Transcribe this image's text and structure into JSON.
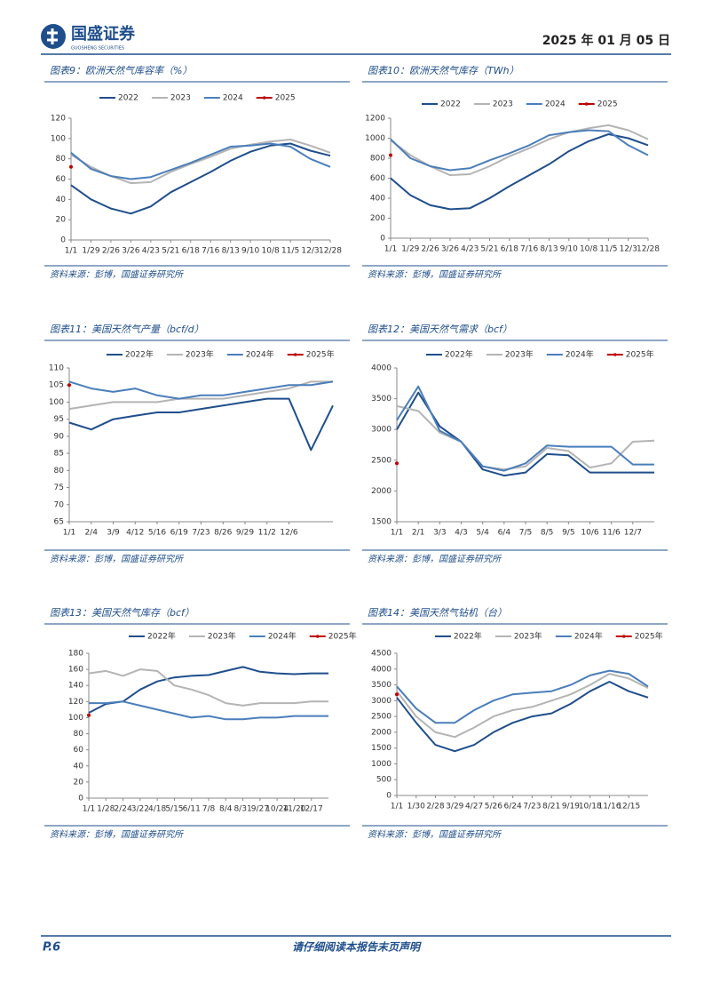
{
  "header": {
    "logo": "国盛证券",
    "logo_sub": "GUOSHENG SECURITIES",
    "date": "2025 年 01 月 05 日"
  },
  "footer": {
    "page": "P.6",
    "notice": "请仔细阅读本报告末页声明"
  },
  "chart_data": [
    {
      "type": "line",
      "title": "图表9：欧洲天然气库容率（%）",
      "source": "资料来源：彭博，国盛证券研究所",
      "categories": [
        "1/1",
        "1/29",
        "2/26",
        "3/26",
        "4/23",
        "5/21",
        "6/18",
        "7/16",
        "8/13",
        "9/10",
        "10/8",
        "11/5",
        "12/3",
        "12/28"
      ],
      "ylim": [
        0,
        120
      ],
      "yticks": [
        0,
        20,
        40,
        60,
        80,
        100,
        120
      ],
      "series": [
        {
          "name": "2022",
          "color": "#1f4e8c",
          "values": [
            54,
            40,
            31,
            26,
            33,
            47,
            57,
            67,
            78,
            87,
            93,
            95,
            88,
            83
          ]
        },
        {
          "name": "2023",
          "color": "#b4b4b4",
          "values": [
            84,
            72,
            63,
            56,
            57,
            67,
            75,
            82,
            90,
            94,
            97,
            99,
            93,
            86
          ]
        },
        {
          "name": "2024",
          "color": "#4a7ebb",
          "values": [
            86,
            70,
            63,
            60,
            62,
            69,
            76,
            84,
            92,
            93,
            95,
            92,
            80,
            72
          ]
        },
        {
          "name": "2025",
          "color": "#c00000",
          "values": [
            72,
            null,
            null,
            null,
            null,
            null,
            null,
            null,
            null,
            null,
            null,
            null,
            null,
            null
          ]
        }
      ]
    },
    {
      "type": "line",
      "title": "图表10：欧洲天然气库存（TWh）",
      "source": "资料来源：彭博，国盛证券研究所",
      "categories": [
        "1/1",
        "1/29",
        "2/26",
        "3/26",
        "4/23",
        "5/21",
        "6/18",
        "7/16",
        "8/13",
        "9/10",
        "10/8",
        "11/5",
        "12/3",
        "12/28"
      ],
      "ylim": [
        0,
        1200
      ],
      "yticks": [
        0,
        200,
        400,
        600,
        800,
        1000,
        1200
      ],
      "series": [
        {
          "name": "2022",
          "color": "#1f4e8c",
          "values": [
            600,
            430,
            330,
            290,
            300,
            400,
            520,
            630,
            740,
            870,
            970,
            1040,
            1000,
            930
          ]
        },
        {
          "name": "2023",
          "color": "#b4b4b4",
          "values": [
            980,
            830,
            720,
            630,
            640,
            720,
            820,
            900,
            990,
            1060,
            1100,
            1130,
            1080,
            990
          ]
        },
        {
          "name": "2024",
          "color": "#4a7ebb",
          "values": [
            990,
            800,
            720,
            680,
            700,
            780,
            850,
            930,
            1030,
            1060,
            1080,
            1070,
            930,
            830
          ]
        },
        {
          "name": "2025",
          "color": "#c00000",
          "values": [
            830,
            null,
            null,
            null,
            null,
            null,
            null,
            null,
            null,
            null,
            null,
            null,
            null,
            null
          ]
        }
      ]
    },
    {
      "type": "line",
      "title": "图表11：美国天然气产量（bcf/d）",
      "source": "资料来源：彭博，国盛证券研究所",
      "categories": [
        "1/1",
        "2/4",
        "3/9",
        "4/12",
        "5/16",
        "6/19",
        "7/23",
        "8/26",
        "9/29",
        "11/2",
        "12/6",
        null,
        null
      ],
      "ylim": [
        65,
        110
      ],
      "yticks": [
        65,
        70,
        75,
        80,
        85,
        90,
        95,
        100,
        105,
        110
      ],
      "series": [
        {
          "name": "2022年",
          "color": "#1f4e8c",
          "values": [
            94,
            92,
            95,
            96,
            97,
            97,
            98,
            99,
            100,
            101,
            101,
            86,
            99
          ]
        },
        {
          "name": "2023年",
          "color": "#b4b4b4",
          "values": [
            98,
            99,
            100,
            100,
            100,
            101,
            101,
            101,
            102,
            103,
            104,
            106,
            106
          ]
        },
        {
          "name": "2024年",
          "color": "#4a7ebb",
          "values": [
            106,
            104,
            103,
            104,
            102,
            101,
            102,
            102,
            103,
            104,
            105,
            105,
            106
          ]
        },
        {
          "name": "2025年",
          "color": "#c00000",
          "values": [
            105,
            null,
            null,
            null,
            null,
            null,
            null,
            null,
            null,
            null,
            null,
            null,
            null
          ]
        }
      ]
    },
    {
      "type": "line",
      "title": "图表12：美国天然气需求（bcf）",
      "source": "资料来源：彭博，国盛证券研究所",
      "categories": [
        "1/1",
        "2/1",
        "3/3",
        "4/3",
        "5/4",
        "6/4",
        "7/5",
        "8/5",
        "9/5",
        "10/6",
        "11/6",
        "12/7",
        null
      ],
      "ylim": [
        1500,
        4000
      ],
      "yticks": [
        1500,
        2000,
        2500,
        3000,
        3500,
        4000
      ],
      "series": [
        {
          "name": "2022年",
          "color": "#1f4e8c",
          "values": [
            3000,
            3600,
            3050,
            2800,
            2350,
            2250,
            2300,
            2600,
            2580,
            2300,
            2300,
            2300,
            2300
          ]
        },
        {
          "name": "2023年",
          "color": "#b4b4b4",
          "values": [
            3380,
            3300,
            2950,
            2800,
            2400,
            2350,
            2400,
            2700,
            2650,
            2380,
            2450,
            2800,
            2820
          ]
        },
        {
          "name": "2024年",
          "color": "#4a7ebb",
          "values": [
            3150,
            3700,
            2980,
            2800,
            2400,
            2330,
            2450,
            2740,
            2720,
            2720,
            2720,
            2430,
            2430
          ]
        },
        {
          "name": "2025年",
          "color": "#c00000",
          "values": [
            2450,
            null,
            null,
            null,
            null,
            null,
            null,
            null,
            null,
            null,
            null,
            null,
            null
          ]
        }
      ]
    },
    {
      "type": "line",
      "title": "图表13：美国天然气库存（bcf）",
      "source": "资料来源：彭博，国盛证券研究所",
      "categories": [
        "1/1",
        "1/28",
        "2/24",
        "3/22",
        "4/18",
        "5/15",
        "6/11",
        "7/8",
        "8/4",
        "8/31",
        "9/27",
        "10/24",
        "11/20",
        "12/17",
        null
      ],
      "ylim": [
        0,
        180
      ],
      "yticks": [
        0,
        20,
        40,
        60,
        80,
        100,
        120,
        140,
        160,
        180
      ],
      "series": [
        {
          "name": "2022年",
          "color": "#1f4e8c",
          "values": [
            106,
            117,
            120,
            135,
            145,
            150,
            152,
            153,
            158,
            163,
            157,
            155,
            154,
            155,
            155
          ]
        },
        {
          "name": "2023年",
          "color": "#b4b4b4",
          "values": [
            155,
            158,
            152,
            160,
            158,
            140,
            135,
            128,
            118,
            115,
            118,
            118,
            118,
            120,
            120
          ]
        },
        {
          "name": "2024年",
          "color": "#4a7ebb",
          "values": [
            118,
            118,
            120,
            115,
            110,
            105,
            100,
            102,
            98,
            98,
            100,
            100,
            102,
            102,
            102
          ]
        },
        {
          "name": "2025年",
          "color": "#c00000",
          "values": [
            103,
            null,
            null,
            null,
            null,
            null,
            null,
            null,
            null,
            null,
            null,
            null,
            null,
            null,
            null
          ]
        }
      ]
    },
    {
      "type": "line",
      "title": "图表14：美国天然气钻机（台）",
      "source": "资料来源：彭博，国盛证券研究所",
      "categories": [
        "1/1",
        "1/30",
        "2/28",
        "3/29",
        "4/27",
        "5/26",
        "6/24",
        "7/23",
        "8/21",
        "9/19",
        "10/18",
        "11/16",
        "12/15",
        null
      ],
      "ylim": [
        0,
        4500
      ],
      "yticks": [
        0,
        500,
        1000,
        1500,
        2000,
        2500,
        3000,
        3500,
        4000,
        4500
      ],
      "series": [
        {
          "name": "2022年",
          "color": "#1f4e8c",
          "values": [
            3100,
            2300,
            1600,
            1400,
            1600,
            2000,
            2300,
            2500,
            2600,
            2900,
            3300,
            3600,
            3300,
            3100
          ]
        },
        {
          "name": "2023年",
          "color": "#b4b4b4",
          "values": [
            3300,
            2500,
            2000,
            1850,
            2150,
            2500,
            2700,
            2800,
            3000,
            3200,
            3500,
            3850,
            3700,
            3400
          ]
        },
        {
          "name": "2024年",
          "color": "#4a7ebb",
          "values": [
            3450,
            2750,
            2300,
            2300,
            2700,
            3000,
            3200,
            3250,
            3300,
            3500,
            3800,
            3950,
            3850,
            3450
          ]
        },
        {
          "name": "2025年",
          "color": "#c00000",
          "values": [
            3200,
            null,
            null,
            null,
            null,
            null,
            null,
            null,
            null,
            null,
            null,
            null,
            null,
            null
          ]
        }
      ]
    }
  ]
}
